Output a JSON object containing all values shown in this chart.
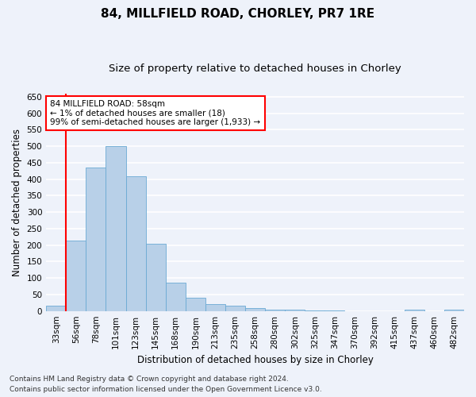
{
  "title_line1": "84, MILLFIELD ROAD, CHORLEY, PR7 1RE",
  "title_line2": "Size of property relative to detached houses in Chorley",
  "xlabel": "Distribution of detached houses by size in Chorley",
  "ylabel": "Number of detached properties",
  "categories": [
    "33sqm",
    "56sqm",
    "78sqm",
    "101sqm",
    "123sqm",
    "145sqm",
    "168sqm",
    "190sqm",
    "213sqm",
    "235sqm",
    "258sqm",
    "280sqm",
    "302sqm",
    "325sqm",
    "347sqm",
    "370sqm",
    "392sqm",
    "415sqm",
    "437sqm",
    "460sqm",
    "482sqm"
  ],
  "values": [
    15,
    213,
    435,
    500,
    408,
    205,
    87,
    40,
    20,
    17,
    10,
    5,
    3,
    2,
    1,
    0,
    0,
    0,
    5,
    0,
    5
  ],
  "bar_color": "#b8d0e8",
  "bar_edge_color": "#6aaad4",
  "annotation_text_line1": "84 MILLFIELD ROAD: 58sqm",
  "annotation_text_line2": "← 1% of detached houses are smaller (18)",
  "annotation_text_line3": "99% of semi-detached houses are larger (1,933) →",
  "annotation_box_facecolor": "white",
  "annotation_box_edgecolor": "red",
  "vline_color": "red",
  "vline_x": 0.5,
  "ylim": [
    0,
    660
  ],
  "yticks": [
    0,
    50,
    100,
    150,
    200,
    250,
    300,
    350,
    400,
    450,
    500,
    550,
    600,
    650
  ],
  "background_color": "#eef2fa",
  "grid_color": "white",
  "footer_line1": "Contains HM Land Registry data © Crown copyright and database right 2024.",
  "footer_line2": "Contains public sector information licensed under the Open Government Licence v3.0.",
  "title_fontsize": 11,
  "subtitle_fontsize": 9.5,
  "axis_label_fontsize": 8.5,
  "tick_fontsize": 7.5,
  "annotation_fontsize": 7.5,
  "footer_fontsize": 6.5
}
